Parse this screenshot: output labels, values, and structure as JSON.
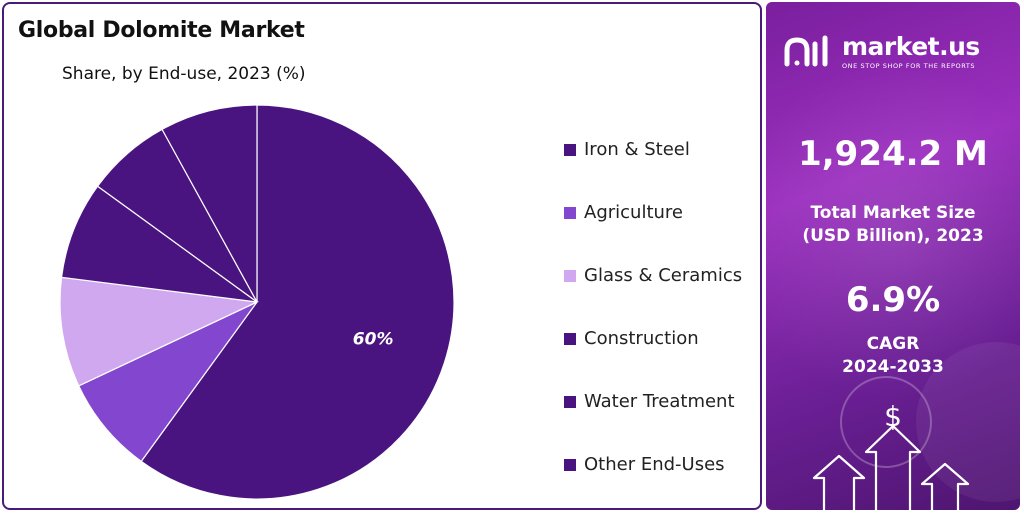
{
  "chart_title": "Global Dolomite Market",
  "chart_subtitle": "Share, by End-use, 2023 (%)",
  "chart_data": {
    "type": "pie",
    "title": "Global Dolomite Market",
    "subtitle": "Share, by End-use, 2023 (%)",
    "legend_position": "right",
    "slices": [
      {
        "label": "Iron & Steel",
        "value": 60,
        "color": "#4a1480",
        "data_label": "60%"
      },
      {
        "label": "Agriculture",
        "value": 8,
        "color": "#8347cf",
        "data_label": ""
      },
      {
        "label": "Glass & Ceramics",
        "value": 9,
        "color": "#cfa8ef",
        "data_label": ""
      },
      {
        "label": "Construction",
        "value": 8,
        "color": "#4a1480",
        "data_label": ""
      },
      {
        "label": "Water Treatment",
        "value": 7,
        "color": "#4a1480",
        "data_label": ""
      },
      {
        "label": "Other End-Uses",
        "value": 8,
        "color": "#4a1480",
        "data_label": ""
      }
    ]
  },
  "brand": {
    "name": "market.us",
    "tagline": "ONE STOP SHOP FOR THE REPORTS"
  },
  "stats": {
    "market_size_value": "1,924.2 M",
    "market_size_label_line1": "Total Market Size",
    "market_size_label_line2": "(USD Billion), 2023",
    "cagr_value": "6.9%",
    "cagr_label_line1": "CAGR",
    "cagr_label_line2": "2024-2033"
  },
  "decoration": {
    "dollar_symbol": "$"
  }
}
